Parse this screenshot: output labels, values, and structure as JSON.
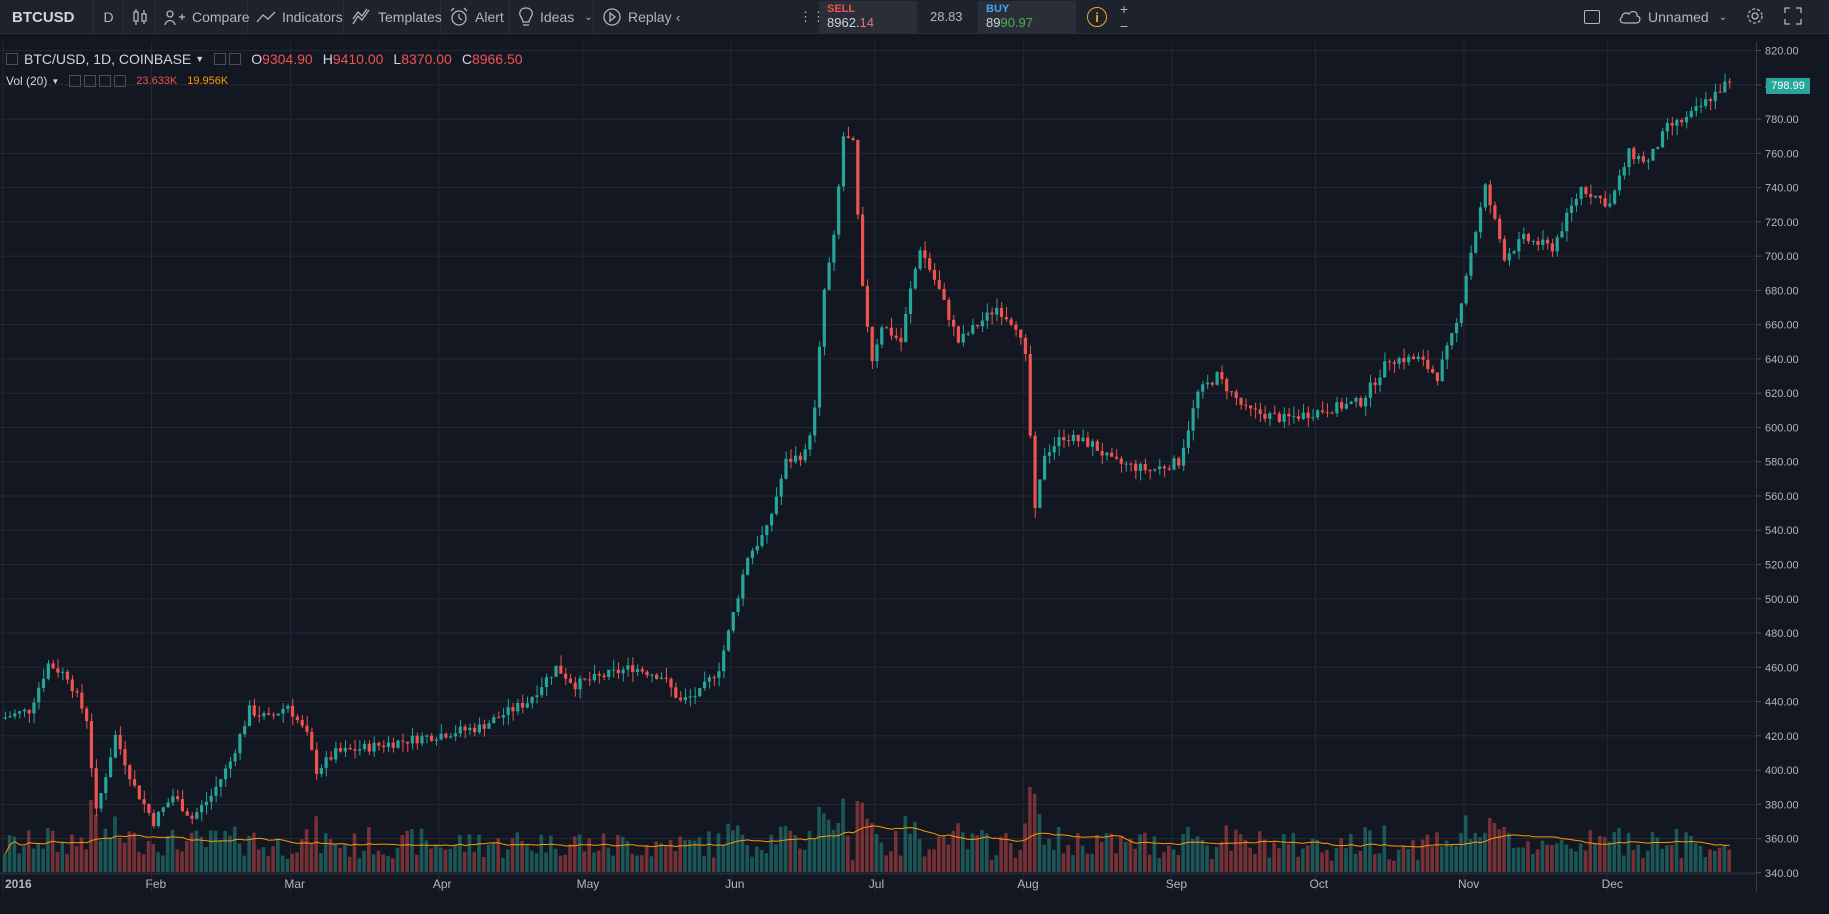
{
  "toolbar": {
    "symbol": "BTCUSD",
    "interval": "D",
    "compare_label": "Compare",
    "indicators_label": "Indicators",
    "templates_label": "Templates",
    "alert_label": "Alert",
    "ideas_label": "Ideas",
    "replay_label": "Replay",
    "sell_label": "SELL",
    "sell_price_main": "8962.",
    "sell_price_small": "14",
    "spread": "28.83",
    "buy_label": "BUY",
    "buy_price_main": "89",
    "buy_price_small": "90.97",
    "plus_label": "+",
    "minus_label": "−",
    "cloud_label": "Unnamed"
  },
  "legend": {
    "title": "BTC/USD, 1D, COINBASE",
    "o_key": "O",
    "o_val": "9304.90",
    "h_key": "H",
    "h_val": "9410.00",
    "l_key": "L",
    "l_val": "8370.00",
    "c_key": "C",
    "c_val": "8966.50",
    "vol_label": "Vol (20)",
    "vol_val1": "23.633K",
    "vol_val2": "19.956K"
  },
  "chart_data": {
    "type": "candlestick",
    "ylim": [
      330,
      825
    ],
    "yticks": [
      340,
      360,
      380,
      400,
      420,
      440,
      460,
      480,
      500,
      520,
      540,
      560,
      580,
      600,
      620,
      640,
      660,
      680,
      700,
      720,
      740,
      760,
      780,
      800,
      820
    ],
    "ytick_labels": [
      "340.00",
      "360.00",
      "380.00",
      "400.00",
      "420.00",
      "440.00",
      "460.00",
      "480.00",
      "500.00",
      "520.00",
      "540.00",
      "560.00",
      "580.00",
      "600.00",
      "620.00",
      "640.00",
      "660.00",
      "680.00",
      "700.00",
      "720.00",
      "740.00",
      "760.00",
      "780.00",
      "800.00",
      "820.00"
    ],
    "xlabels": [
      "2016",
      "Feb",
      "Mar",
      "Apr",
      "May",
      "Jun",
      "Jul",
      "Aug",
      "Sep",
      "Oct",
      "Nov",
      "Dec"
    ],
    "xlabel_days": [
      0,
      31,
      60,
      91,
      121,
      152,
      182,
      213,
      244,
      274,
      305,
      335
    ],
    "last_price": "798.99",
    "price_keypoints": [
      [
        0,
        430
      ],
      [
        6,
        435
      ],
      [
        10,
        462
      ],
      [
        14,
        455
      ],
      [
        18,
        430
      ],
      [
        20,
        375
      ],
      [
        24,
        420
      ],
      [
        28,
        390
      ],
      [
        32,
        370
      ],
      [
        36,
        385
      ],
      [
        40,
        372
      ],
      [
        44,
        385
      ],
      [
        48,
        405
      ],
      [
        52,
        435
      ],
      [
        56,
        430
      ],
      [
        60,
        438
      ],
      [
        64,
        420
      ],
      [
        66,
        400
      ],
      [
        70,
        410
      ],
      [
        80,
        415
      ],
      [
        90,
        420
      ],
      [
        100,
        425
      ],
      [
        110,
        440
      ],
      [
        116,
        460
      ],
      [
        120,
        450
      ],
      [
        126,
        455
      ],
      [
        132,
        460
      ],
      [
        138,
        455
      ],
      [
        142,
        440
      ],
      [
        146,
        445
      ],
      [
        150,
        460
      ],
      [
        152,
        480
      ],
      [
        156,
        525
      ],
      [
        160,
        540
      ],
      [
        164,
        580
      ],
      [
        168,
        585
      ],
      [
        170,
        610
      ],
      [
        172,
        680
      ],
      [
        174,
        710
      ],
      [
        176,
        770
      ],
      [
        178,
        765
      ],
      [
        180,
        680
      ],
      [
        182,
        640
      ],
      [
        184,
        660
      ],
      [
        188,
        650
      ],
      [
        190,
        680
      ],
      [
        192,
        705
      ],
      [
        196,
        680
      ],
      [
        200,
        650
      ],
      [
        204,
        660
      ],
      [
        208,
        670
      ],
      [
        212,
        660
      ],
      [
        214,
        640
      ],
      [
        216,
        550
      ],
      [
        218,
        585
      ],
      [
        222,
        595
      ],
      [
        228,
        590
      ],
      [
        232,
        580
      ],
      [
        240,
        575
      ],
      [
        246,
        580
      ],
      [
        250,
        620
      ],
      [
        254,
        630
      ],
      [
        260,
        610
      ],
      [
        268,
        605
      ],
      [
        276,
        610
      ],
      [
        284,
        615
      ],
      [
        290,
        640
      ],
      [
        296,
        640
      ],
      [
        300,
        630
      ],
      [
        304,
        660
      ],
      [
        306,
        690
      ],
      [
        310,
        740
      ],
      [
        314,
        700
      ],
      [
        318,
        710
      ],
      [
        324,
        705
      ],
      [
        330,
        740
      ],
      [
        336,
        730
      ],
      [
        340,
        760
      ],
      [
        344,
        755
      ],
      [
        348,
        775
      ],
      [
        352,
        780
      ],
      [
        358,
        795
      ],
      [
        360,
        800
      ]
    ]
  }
}
